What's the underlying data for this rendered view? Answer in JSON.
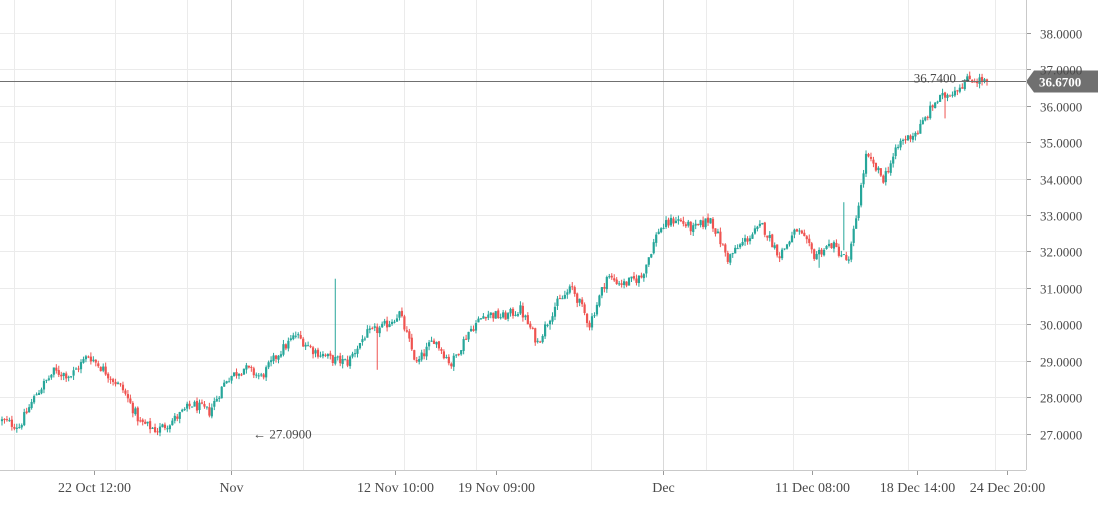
{
  "chart_data": {
    "type": "candlestick",
    "title": "",
    "xlabel": "",
    "ylabel": "",
    "ylim": [
      26.0,
      38.9
    ],
    "y_ticks": [
      "27.0000",
      "28.0000",
      "29.0000",
      "30.0000",
      "31.0000",
      "32.0000",
      "33.0000",
      "34.0000",
      "35.0000",
      "36.0000",
      "37.0000",
      "38.0000"
    ],
    "x_ticks": [
      {
        "label": "22 Oct 12:00",
        "date": "2018-10-22 12:00",
        "major": false
      },
      {
        "label": "Nov",
        "date": "2018-11-01",
        "major": true
      },
      {
        "label": "12 Nov 10:00",
        "date": "2018-11-12 10:00",
        "major": false
      },
      {
        "label": "19 Nov 09:00",
        "date": "2018-11-19 09:00",
        "major": false
      },
      {
        "label": "Dec",
        "date": "2018-12-01",
        "major": true
      },
      {
        "label": "11 Dec 08:00",
        "date": "2018-12-11 08:00",
        "major": false
      },
      {
        "label": "18 Dec 14:00",
        "date": "2018-12-18 14:00",
        "major": false
      },
      {
        "label": "24 Dec 20:00",
        "date": "2018-12-24 20:00",
        "major": false
      }
    ],
    "grid": true,
    "current_price": {
      "value": 36.67,
      "label": "36.6700"
    },
    "annotations": [
      {
        "label": "27.0900",
        "value": 27.09,
        "kind": "low",
        "arrow": "←"
      },
      {
        "label": "36.7400",
        "value": 36.74,
        "kind": "high",
        "arrow": "→"
      }
    ],
    "colors": {
      "up": "#26a69a",
      "down": "#ef5350",
      "price_line": "#707070",
      "price_badge": "#707070",
      "grid": "#ebebeb",
      "major_grid": "#d9d9d9",
      "axis_text": "#4a4a4a"
    },
    "path_points": [
      27.35,
      27.2,
      28.1,
      28.7,
      28.6,
      29.15,
      28.7,
      28.2,
      27.3,
      27.09,
      27.4,
      27.8,
      27.6,
      28.5,
      28.8,
      28.55,
      29.2,
      29.7,
      29.3,
      29.05,
      28.95,
      29.7,
      29.9,
      30.3,
      28.9,
      29.6,
      28.9,
      29.8,
      30.3,
      30.2,
      30.4,
      29.5,
      30.5,
      31.0,
      30.0,
      31.3,
      31.1,
      31.3,
      32.6,
      32.9,
      32.6,
      32.9,
      31.8,
      32.3,
      32.7,
      31.9,
      32.6,
      31.9,
      32.2,
      31.7,
      34.6,
      34.0,
      35.0,
      35.3,
      36.1,
      36.4,
      36.74,
      36.67
    ],
    "candle_count": 400,
    "spikes": [
      {
        "at": 0.338,
        "value": 31.25,
        "dir": "up"
      },
      {
        "at": 0.343,
        "value": 28.85,
        "dir": "down"
      },
      {
        "at": 0.381,
        "value": 28.75,
        "dir": "down"
      },
      {
        "at": 0.557,
        "value": 29.85,
        "dir": "down"
      },
      {
        "at": 0.829,
        "value": 31.55,
        "dir": "down"
      },
      {
        "at": 0.855,
        "value": 33.35,
        "dir": "down"
      },
      {
        "at": 0.957,
        "value": 35.65,
        "dir": "down"
      }
    ]
  }
}
